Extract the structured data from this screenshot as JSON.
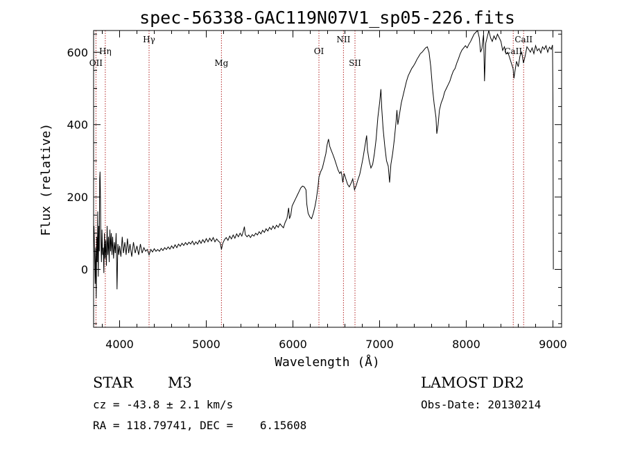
{
  "chart_data": {
    "type": "line",
    "title": "spec-56338-GAC119N07V1_sp05-226.fits",
    "xlabel": "Wavelength (Å)",
    "ylabel": "Flux (relative)",
    "xlim": [
      3700,
      9100
    ],
    "ylim": [
      -160,
      660
    ],
    "xticks": [
      4000,
      5000,
      6000,
      7000,
      8000,
      9000
    ],
    "yticks": [
      0,
      200,
      400,
      600
    ],
    "grid": false,
    "series": [
      {
        "color": "#000000",
        "points": [
          [
            3705,
            120
          ],
          [
            3712,
            40
          ],
          [
            3718,
            -40
          ],
          [
            3724,
            60
          ],
          [
            3730,
            -80
          ],
          [
            3736,
            90
          ],
          [
            3742,
            20
          ],
          [
            3748,
            160
          ],
          [
            3754,
            -20
          ],
          [
            3760,
            120
          ],
          [
            3766,
            50
          ],
          [
            3770,
            250
          ],
          [
            3774,
            270
          ],
          [
            3779,
            200
          ],
          [
            3784,
            80
          ],
          [
            3790,
            20
          ],
          [
            3797,
            110
          ],
          [
            3804,
            40
          ],
          [
            3811,
            60
          ],
          [
            3818,
            -10
          ],
          [
            3825,
            100
          ],
          [
            3832,
            30
          ],
          [
            3840,
            80
          ],
          [
            3848,
            10
          ],
          [
            3856,
            120
          ],
          [
            3864,
            40
          ],
          [
            3872,
            90
          ],
          [
            3880,
            20
          ],
          [
            3888,
            110
          ],
          [
            3896,
            50
          ],
          [
            3904,
            100
          ],
          [
            3912,
            40
          ],
          [
            3920,
            90
          ],
          [
            3930,
            30
          ],
          [
            3940,
            75
          ],
          [
            3950,
            45
          ],
          [
            3960,
            100
          ],
          [
            3970,
            -55
          ],
          [
            3980,
            70
          ],
          [
            3990,
            40
          ],
          [
            4000,
            65
          ],
          [
            4015,
            35
          ],
          [
            4030,
            90
          ],
          [
            4045,
            45
          ],
          [
            4060,
            75
          ],
          [
            4075,
            40
          ],
          [
            4090,
            85
          ],
          [
            4105,
            45
          ],
          [
            4120,
            70
          ],
          [
            4140,
            35
          ],
          [
            4160,
            75
          ],
          [
            4180,
            45
          ],
          [
            4200,
            65
          ],
          [
            4220,
            40
          ],
          [
            4240,
            70
          ],
          [
            4260,
            45
          ],
          [
            4280,
            60
          ],
          [
            4300,
            50
          ],
          [
            4320,
            55
          ],
          [
            4340,
            40
          ],
          [
            4360,
            55
          ],
          [
            4380,
            48
          ],
          [
            4400,
            57
          ],
          [
            4420,
            50
          ],
          [
            4440,
            55
          ],
          [
            4460,
            50
          ],
          [
            4480,
            58
          ],
          [
            4500,
            52
          ],
          [
            4520,
            60
          ],
          [
            4540,
            55
          ],
          [
            4560,
            62
          ],
          [
            4580,
            56
          ],
          [
            4600,
            65
          ],
          [
            4620,
            58
          ],
          [
            4640,
            68
          ],
          [
            4660,
            60
          ],
          [
            4680,
            70
          ],
          [
            4700,
            64
          ],
          [
            4720,
            72
          ],
          [
            4740,
            66
          ],
          [
            4760,
            74
          ],
          [
            4780,
            68
          ],
          [
            4800,
            75
          ],
          [
            4820,
            70
          ],
          [
            4840,
            78
          ],
          [
            4860,
            68
          ],
          [
            4880,
            76
          ],
          [
            4900,
            70
          ],
          [
            4920,
            80
          ],
          [
            4940,
            72
          ],
          [
            4960,
            82
          ],
          [
            4980,
            74
          ],
          [
            5000,
            85
          ],
          [
            5020,
            76
          ],
          [
            5040,
            86
          ],
          [
            5060,
            78
          ],
          [
            5080,
            88
          ],
          [
            5100,
            76
          ],
          [
            5120,
            84
          ],
          [
            5140,
            78
          ],
          [
            5160,
            74
          ],
          [
            5175,
            55
          ],
          [
            5190,
            72
          ],
          [
            5210,
            82
          ],
          [
            5230,
            88
          ],
          [
            5250,
            80
          ],
          [
            5270,
            92
          ],
          [
            5290,
            84
          ],
          [
            5310,
            95
          ],
          [
            5330,
            86
          ],
          [
            5350,
            98
          ],
          [
            5370,
            90
          ],
          [
            5390,
            100
          ],
          [
            5410,
            92
          ],
          [
            5430,
            108
          ],
          [
            5440,
            118
          ],
          [
            5450,
            96
          ],
          [
            5470,
            90
          ],
          [
            5490,
            95
          ],
          [
            5510,
            88
          ],
          [
            5530,
            96
          ],
          [
            5550,
            92
          ],
          [
            5570,
            100
          ],
          [
            5590,
            95
          ],
          [
            5610,
            104
          ],
          [
            5630,
            98
          ],
          [
            5650,
            108
          ],
          [
            5670,
            102
          ],
          [
            5690,
            112
          ],
          [
            5710,
            106
          ],
          [
            5730,
            116
          ],
          [
            5750,
            110
          ],
          [
            5770,
            120
          ],
          [
            5790,
            112
          ],
          [
            5810,
            122
          ],
          [
            5830,
            116
          ],
          [
            5850,
            126
          ],
          [
            5870,
            120
          ],
          [
            5890,
            115
          ],
          [
            5910,
            130
          ],
          [
            5930,
            140
          ],
          [
            5950,
            170
          ],
          [
            5960,
            140
          ],
          [
            5975,
            150
          ],
          [
            5990,
            175
          ],
          [
            6010,
            185
          ],
          [
            6030,
            195
          ],
          [
            6050,
            205
          ],
          [
            6070,
            215
          ],
          [
            6090,
            225
          ],
          [
            6110,
            230
          ],
          [
            6130,
            228
          ],
          [
            6150,
            220
          ],
          [
            6160,
            180
          ],
          [
            6175,
            155
          ],
          [
            6195,
            145
          ],
          [
            6215,
            140
          ],
          [
            6235,
            155
          ],
          [
            6255,
            175
          ],
          [
            6270,
            195
          ],
          [
            6290,
            230
          ],
          [
            6300,
            255
          ],
          [
            6320,
            270
          ],
          [
            6340,
            280
          ],
          [
            6360,
            300
          ],
          [
            6380,
            320
          ],
          [
            6395,
            345
          ],
          [
            6410,
            360
          ],
          [
            6425,
            340
          ],
          [
            6440,
            330
          ],
          [
            6460,
            318
          ],
          [
            6480,
            305
          ],
          [
            6500,
            290
          ],
          [
            6520,
            275
          ],
          [
            6540,
            265
          ],
          [
            6555,
            270
          ],
          [
            6565,
            260
          ],
          [
            6575,
            240
          ],
          [
            6590,
            265
          ],
          [
            6610,
            250
          ],
          [
            6630,
            235
          ],
          [
            6650,
            228
          ],
          [
            6670,
            238
          ],
          [
            6690,
            250
          ],
          [
            6710,
            220
          ],
          [
            6730,
            232
          ],
          [
            6750,
            248
          ],
          [
            6770,
            262
          ],
          [
            6790,
            285
          ],
          [
            6810,
            310
          ],
          [
            6830,
            340
          ],
          [
            6850,
            370
          ],
          [
            6860,
            330
          ],
          [
            6880,
            300
          ],
          [
            6900,
            280
          ],
          [
            6920,
            290
          ],
          [
            6940,
            320
          ],
          [
            6960,
            360
          ],
          [
            6980,
            420
          ],
          [
            7000,
            460
          ],
          [
            7015,
            498
          ],
          [
            7025,
            445
          ],
          [
            7040,
            390
          ],
          [
            7060,
            340
          ],
          [
            7080,
            300
          ],
          [
            7100,
            285
          ],
          [
            7115,
            240
          ],
          [
            7130,
            290
          ],
          [
            7150,
            320
          ],
          [
            7170,
            360
          ],
          [
            7190,
            410
          ],
          [
            7200,
            440
          ],
          [
            7210,
            400
          ],
          [
            7230,
            430
          ],
          [
            7250,
            460
          ],
          [
            7270,
            480
          ],
          [
            7290,
            500
          ],
          [
            7310,
            520
          ],
          [
            7330,
            535
          ],
          [
            7350,
            545
          ],
          [
            7370,
            555
          ],
          [
            7390,
            562
          ],
          [
            7410,
            570
          ],
          [
            7430,
            580
          ],
          [
            7450,
            588
          ],
          [
            7470,
            596
          ],
          [
            7490,
            600
          ],
          [
            7510,
            606
          ],
          [
            7530,
            612
          ],
          [
            7550,
            615
          ],
          [
            7570,
            600
          ],
          [
            7590,
            560
          ],
          [
            7610,
            500
          ],
          [
            7630,
            455
          ],
          [
            7650,
            420
          ],
          [
            7660,
            375
          ],
          [
            7675,
            400
          ],
          [
            7690,
            440
          ],
          [
            7710,
            460
          ],
          [
            7730,
            472
          ],
          [
            7750,
            490
          ],
          [
            7770,
            500
          ],
          [
            7790,
            510
          ],
          [
            7810,
            520
          ],
          [
            7830,
            535
          ],
          [
            7850,
            548
          ],
          [
            7870,
            555
          ],
          [
            7890,
            570
          ],
          [
            7910,
            582
          ],
          [
            7930,
            596
          ],
          [
            7950,
            606
          ],
          [
            7970,
            612
          ],
          [
            7990,
            618
          ],
          [
            8010,
            612
          ],
          [
            8030,
            622
          ],
          [
            8050,
            630
          ],
          [
            8070,
            640
          ],
          [
            8090,
            650
          ],
          [
            8110,
            655
          ],
          [
            8130,
            660
          ],
          [
            8150,
            640
          ],
          [
            8165,
            600
          ],
          [
            8180,
            610
          ],
          [
            8200,
            650
          ],
          [
            8210,
            520
          ],
          [
            8225,
            625
          ],
          [
            8240,
            640
          ],
          [
            8260,
            660
          ],
          [
            8280,
            640
          ],
          [
            8300,
            630
          ],
          [
            8320,
            645
          ],
          [
            8340,
            635
          ],
          [
            8360,
            650
          ],
          [
            8380,
            640
          ],
          [
            8400,
            630
          ],
          [
            8420,
            605
          ],
          [
            8440,
            615
          ],
          [
            8460,
            595
          ],
          [
            8480,
            600
          ],
          [
            8500,
            585
          ],
          [
            8520,
            570
          ],
          [
            8540,
            555
          ],
          [
            8550,
            528
          ],
          [
            8560,
            545
          ],
          [
            8580,
            575
          ],
          [
            8600,
            560
          ],
          [
            8620,
            590
          ],
          [
            8640,
            600
          ],
          [
            8660,
            570
          ],
          [
            8680,
            590
          ],
          [
            8700,
            615
          ],
          [
            8720,
            608
          ],
          [
            8740,
            600
          ],
          [
            8760,
            612
          ],
          [
            8780,
            596
          ],
          [
            8800,
            618
          ],
          [
            8820,
            604
          ],
          [
            8840,
            610
          ],
          [
            8860,
            598
          ],
          [
            8880,
            615
          ],
          [
            8900,
            608
          ],
          [
            8920,
            618
          ],
          [
            8940,
            600
          ],
          [
            8960,
            614
          ],
          [
            8980,
            608
          ],
          [
            8995,
            620
          ],
          [
            9000,
            470
          ],
          [
            9005,
            0
          ]
        ]
      }
    ],
    "lines": [
      {
        "label": "OII",
        "x": 3727,
        "level": "low"
      },
      {
        "label": "Hη",
        "x": 3835,
        "level": "mid"
      },
      {
        "label": "Hγ",
        "x": 4340,
        "level": "high"
      },
      {
        "label": "Mg",
        "x": 5175,
        "level": "low"
      },
      {
        "label": "OI",
        "x": 6300,
        "level": "mid"
      },
      {
        "label": "NII",
        "x": 6583,
        "level": "high"
      },
      {
        "label": "SII",
        "x": 6716,
        "level": "low"
      },
      {
        "label": "CaII",
        "x": 8542,
        "level": "mid"
      },
      {
        "label": "CaII",
        "x": 8662,
        "level": "high"
      }
    ]
  },
  "info": {
    "class": "STAR",
    "subclass": "M3",
    "survey": "LAMOST DR2",
    "cz": "cz = -43.8 ± 2.1 km/s",
    "obs_date": "Obs-Date: 20130214",
    "coords": "RA = 118.79741, DEC =    6.15608"
  }
}
